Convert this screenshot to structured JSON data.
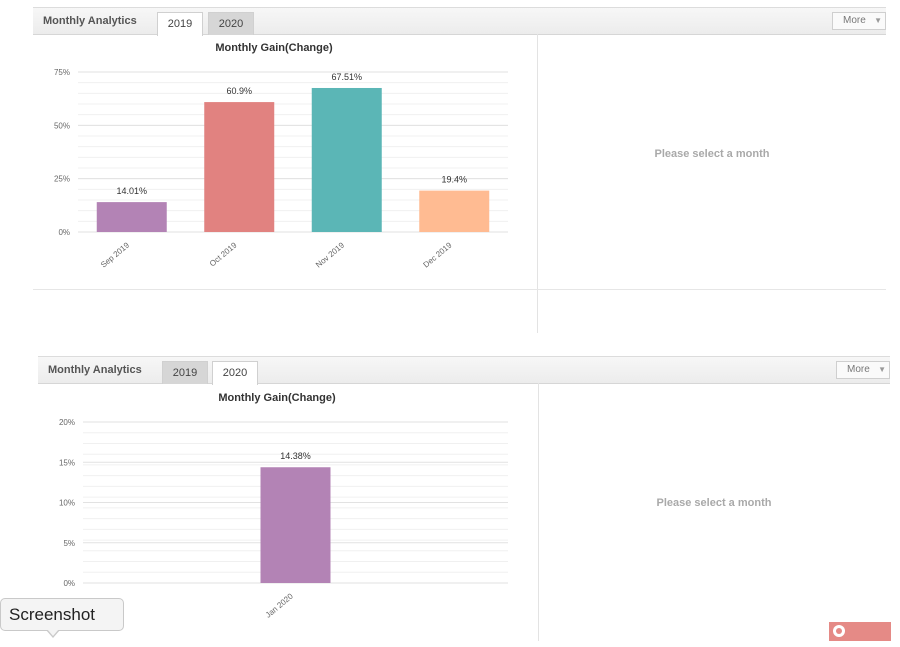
{
  "panels": [
    {
      "title": "Monthly Analytics",
      "tabs": [
        {
          "label": "2019",
          "active": true
        },
        {
          "label": "2020",
          "active": false
        }
      ],
      "more_label": "More",
      "empty_message": "Please select a month"
    },
    {
      "title": "Monthly Analytics",
      "tabs": [
        {
          "label": "2019",
          "active": false
        },
        {
          "label": "2020",
          "active": true
        }
      ],
      "more_label": "More",
      "empty_message": "Please select a month"
    }
  ],
  "chart_data": [
    {
      "type": "bar",
      "title": "Monthly Gain(Change)",
      "categories": [
        "Sep 2019",
        "Oct 2019",
        "Nov 2019",
        "Dec 2019"
      ],
      "values": [
        14.01,
        60.9,
        67.51,
        19.4
      ],
      "data_labels": [
        "14.01%",
        "60.9%",
        "67.51%",
        "19.4%"
      ],
      "colors": [
        "#b383b5",
        "#e18280",
        "#5bb6b6",
        "#ffbb92"
      ],
      "ylim": [
        0,
        75
      ],
      "yticks": [
        0,
        25,
        50,
        75
      ],
      "ytick_labels": [
        "0%",
        "25%",
        "50%",
        "75%"
      ],
      "grid": true
    },
    {
      "type": "bar",
      "title": "Monthly Gain(Change)",
      "categories": [
        "Jan 2020"
      ],
      "values": [
        14.38
      ],
      "data_labels": [
        "14.38%"
      ],
      "colors": [
        "#b383b5"
      ],
      "ylim": [
        0,
        20
      ],
      "yticks": [
        0,
        5,
        10,
        15,
        20
      ],
      "ytick_labels": [
        "0%",
        "5%",
        "10%",
        "15%",
        "20%"
      ],
      "grid": true
    }
  ],
  "overlay": {
    "tooltip_label": "Screenshot"
  }
}
